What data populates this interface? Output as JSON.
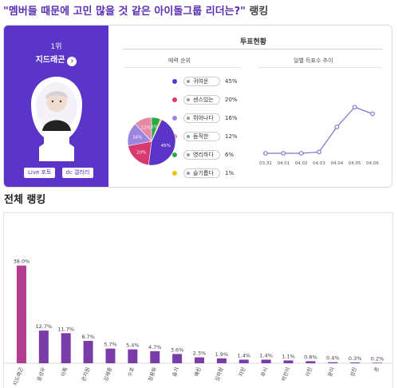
{
  "header": {
    "title": "\"멤버들 때문에 고민 많을 것 같은 아이돌그룹 리더는?\"",
    "title_suffix": "랭킹"
  },
  "winner_panel": {
    "rank": "1위",
    "name": "지드래곤",
    "buttons": [
      "Live 포토",
      "dc 갤러리"
    ],
    "accent": "#5b35c8"
  },
  "vote_status": {
    "title": "투표현황",
    "charm_title": "매력 순위",
    "daily_title": "일별 득표수 추이"
  },
  "charm_ranking": {
    "type": "pie",
    "items": [
      {
        "label": "귀여운",
        "pct": "45%",
        "value": 45,
        "color": "#5b35c8"
      },
      {
        "label": "센스있는",
        "pct": "20%",
        "value": 20,
        "color": "#d8396e"
      },
      {
        "label": "뛰어나다",
        "pct": "16%",
        "value": 16,
        "color": "#9b85e0"
      },
      {
        "label": "듬직한",
        "pct": "12%",
        "value": 12,
        "color": "#e48aa4"
      },
      {
        "label": "영리하다",
        "pct": "6%",
        "value": 6,
        "color": "#2aa84a"
      },
      {
        "label": "슬기롭다",
        "pct": "1%",
        "value": 1,
        "color": "#f2c10a"
      }
    ],
    "slice_labels": [
      "45%",
      "20%",
      "16%",
      "12%",
      "6%"
    ]
  },
  "daily_votes": {
    "type": "line",
    "x": [
      "03.31",
      "04.01",
      "04.02",
      "04.03",
      "04.04",
      "04.05",
      "04.06"
    ],
    "y": [
      0,
      0,
      0,
      1,
      20,
      35,
      30
    ],
    "ylim": [
      0,
      40
    ],
    "color": "#8a72cc"
  },
  "overall": {
    "title": "전체 랭킹"
  },
  "chart_data": {
    "type": "bar",
    "title": "전체 랭킹",
    "categories": [
      "지드래곤",
      "옹성우",
      "이특",
      "온지원",
      "김재중",
      "수호",
      "정용화",
      "슬기",
      "예린",
      "김하랑",
      "지민",
      "루시",
      "박진이",
      "이민",
      "윤이",
      "성진",
      "경"
    ],
    "values": [
      38.0,
      12.7,
      11.7,
      8.7,
      5.7,
      5.4,
      4.7,
      3.6,
      2.3,
      1.9,
      1.4,
      1.4,
      1.1,
      0.8,
      0.4,
      0.3,
      0.2
    ],
    "labels": [
      "38.0%",
      "12.7%",
      "11.7%",
      "8.7%",
      "5.7%",
      "5.4%",
      "4.7%",
      "3.6%",
      "2.3%",
      "1.9%",
      "1.4%",
      "1.4%",
      "1.1%",
      "0.8%",
      "0.4%",
      "0.3%",
      "0.2%"
    ],
    "ylim": [
      0,
      100
    ],
    "bar_color": "#b23c8f",
    "bar_color_light": "#7a3da8"
  }
}
